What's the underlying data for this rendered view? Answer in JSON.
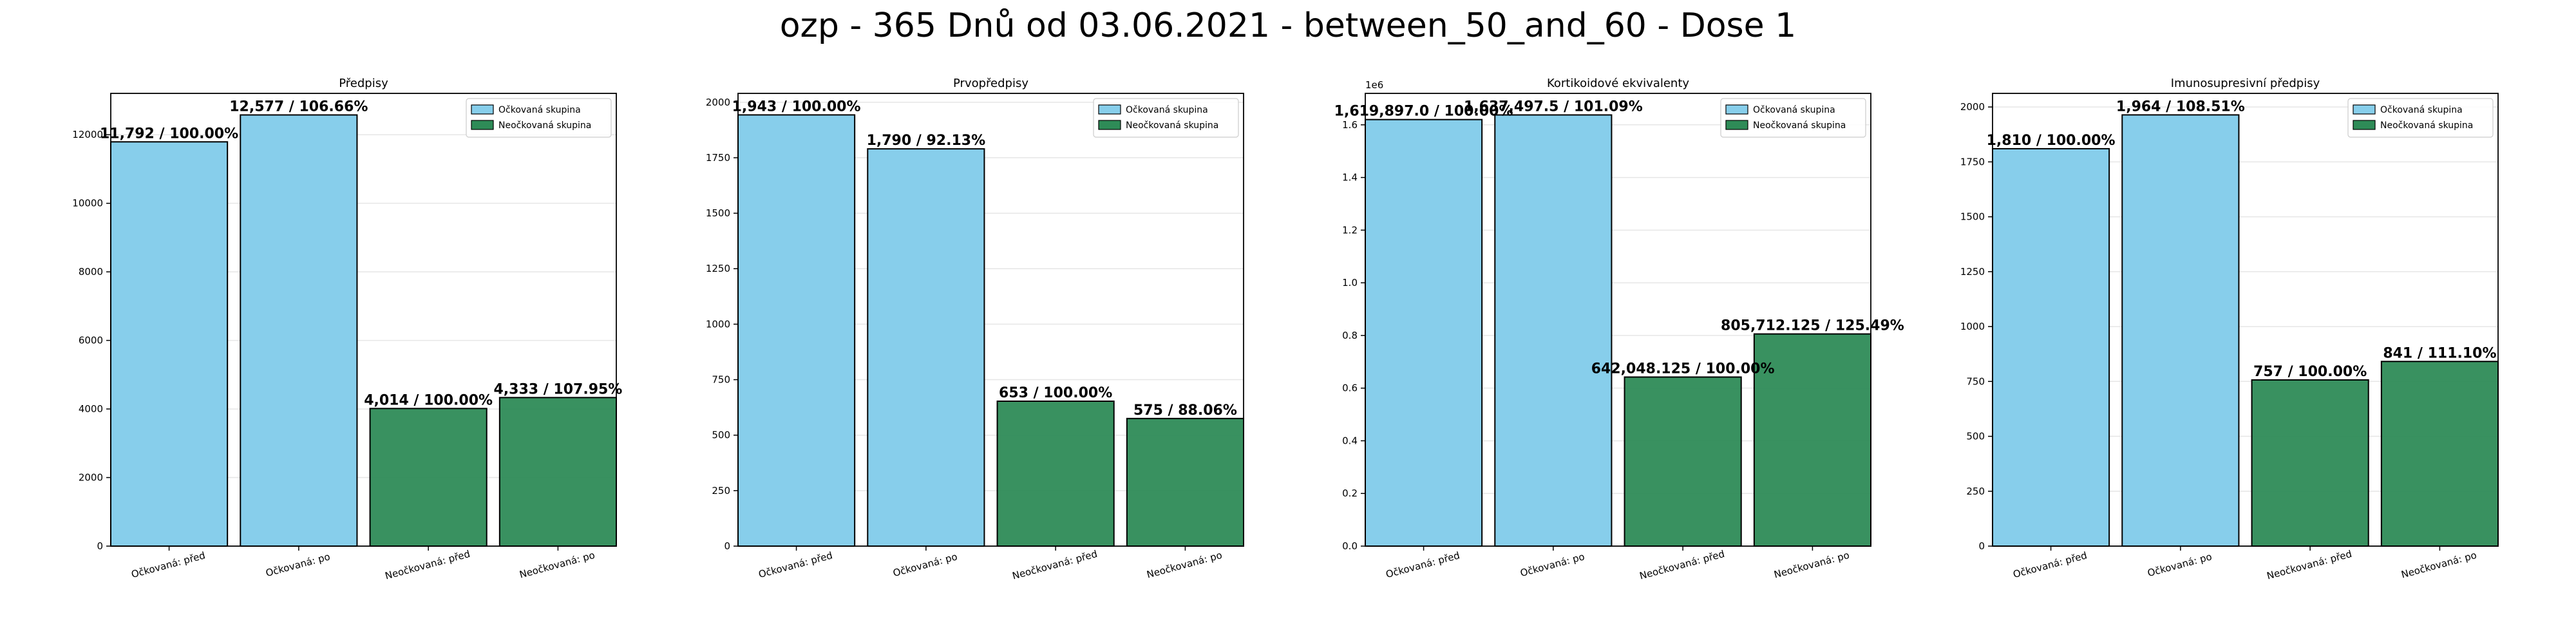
{
  "suptitle": "ozp - 365 Dnů od 03.06.2021 - between_50_and_60 - Dose 1",
  "colors": {
    "vaccinated": "#87CEEB",
    "unvaccinated": "#2E8B57",
    "edge": "#000000",
    "grid": "#e6e6e6"
  },
  "chart_data": [
    {
      "type": "bar",
      "title": "Předpisy",
      "categories": [
        "Očkovaná: před",
        "Očkovaná: po",
        "Neočkovaná: před",
        "Neočkovaná: po"
      ],
      "values": [
        11792,
        12577,
        4014,
        4333
      ],
      "bar_labels": [
        "11,792 / 100.00%",
        "12,577 / 106.66%",
        "4,014 / 100.00%",
        "4,333 / 107.95%"
      ],
      "bar_groups": [
        "vaccinated",
        "vaccinated",
        "unvaccinated",
        "unvaccinated"
      ],
      "legend": [
        "Očkovaná skupina",
        "Neočkovaná skupina"
      ],
      "legend_position": "top-right",
      "ylim": [
        0,
        13206
      ],
      "yticks": [
        0,
        2000,
        4000,
        6000,
        8000,
        10000,
        12000
      ],
      "ytick_labels": [
        "0",
        "2000",
        "4000",
        "6000",
        "8000",
        "10000",
        "12000"
      ],
      "scale_label": "",
      "grid": true
    },
    {
      "type": "bar",
      "title": "Prvopředpisy",
      "categories": [
        "Očkovaná: před",
        "Očkovaná: po",
        "Neočkovaná: před",
        "Neočkovaná: po"
      ],
      "values": [
        1943,
        1790,
        653,
        575
      ],
      "bar_labels": [
        "1,943 / 100.00%",
        "1,790 / 92.13%",
        "653 / 100.00%",
        "575 / 88.06%"
      ],
      "bar_groups": [
        "vaccinated",
        "vaccinated",
        "unvaccinated",
        "unvaccinated"
      ],
      "legend": [
        "Očkovaná skupina",
        "Neočkovaná skupina"
      ],
      "legend_position": "top-right",
      "ylim": [
        0,
        2040
      ],
      "yticks": [
        0,
        250,
        500,
        750,
        1000,
        1250,
        1500,
        1750,
        2000
      ],
      "ytick_labels": [
        "0",
        "250",
        "500",
        "750",
        "1000",
        "1250",
        "1500",
        "1750",
        "2000"
      ],
      "scale_label": "",
      "grid": true
    },
    {
      "type": "bar",
      "title": "Kortikoidové ekvivalenty",
      "categories": [
        "Očkovaná: před",
        "Očkovaná: po",
        "Neočkovaná: před",
        "Neočkovaná: po"
      ],
      "values": [
        1619897.0,
        1637497.5,
        642048.125,
        805712.125
      ],
      "bar_labels": [
        "1,619,897.0 / 100.00%",
        "1,637,497.5 / 101.09%",
        "642,048.125 / 100.00%",
        "805,712.125 / 125.49%"
      ],
      "bar_groups": [
        "vaccinated",
        "vaccinated",
        "unvaccinated",
        "unvaccinated"
      ],
      "legend": [
        "Očkovaná skupina",
        "Neočkovaná skupina"
      ],
      "legend_position": "top-right",
      "ylim": [
        0,
        1719372
      ],
      "yticks": [
        0,
        200000,
        400000,
        600000,
        800000,
        1000000,
        1200000,
        1400000,
        1600000
      ],
      "ytick_labels": [
        "0.0",
        "0.2",
        "0.4",
        "0.6",
        "0.8",
        "1.0",
        "1.2",
        "1.4",
        "1.6"
      ],
      "scale_label": "1e6",
      "grid": true
    },
    {
      "type": "bar",
      "title": "Imunosupresivní předpisy",
      "categories": [
        "Očkovaná: před",
        "Očkovaná: po",
        "Neočkovaná: před",
        "Neočkovaná: po"
      ],
      "values": [
        1810,
        1964,
        757,
        841
      ],
      "bar_labels": [
        "1,810 / 100.00%",
        "1,964 / 108.51%",
        "757 / 100.00%",
        "841 / 111.10%"
      ],
      "bar_groups": [
        "vaccinated",
        "vaccinated",
        "unvaccinated",
        "unvaccinated"
      ],
      "legend": [
        "Očkovaná skupina",
        "Neočkovaná skupina"
      ],
      "legend_position": "top-right",
      "ylim": [
        0,
        2062
      ],
      "yticks": [
        0,
        250,
        500,
        750,
        1000,
        1250,
        1500,
        1750,
        2000
      ],
      "ytick_labels": [
        "0",
        "250",
        "500",
        "750",
        "1000",
        "1250",
        "1500",
        "1750",
        "2000"
      ],
      "scale_label": "",
      "grid": true
    }
  ]
}
